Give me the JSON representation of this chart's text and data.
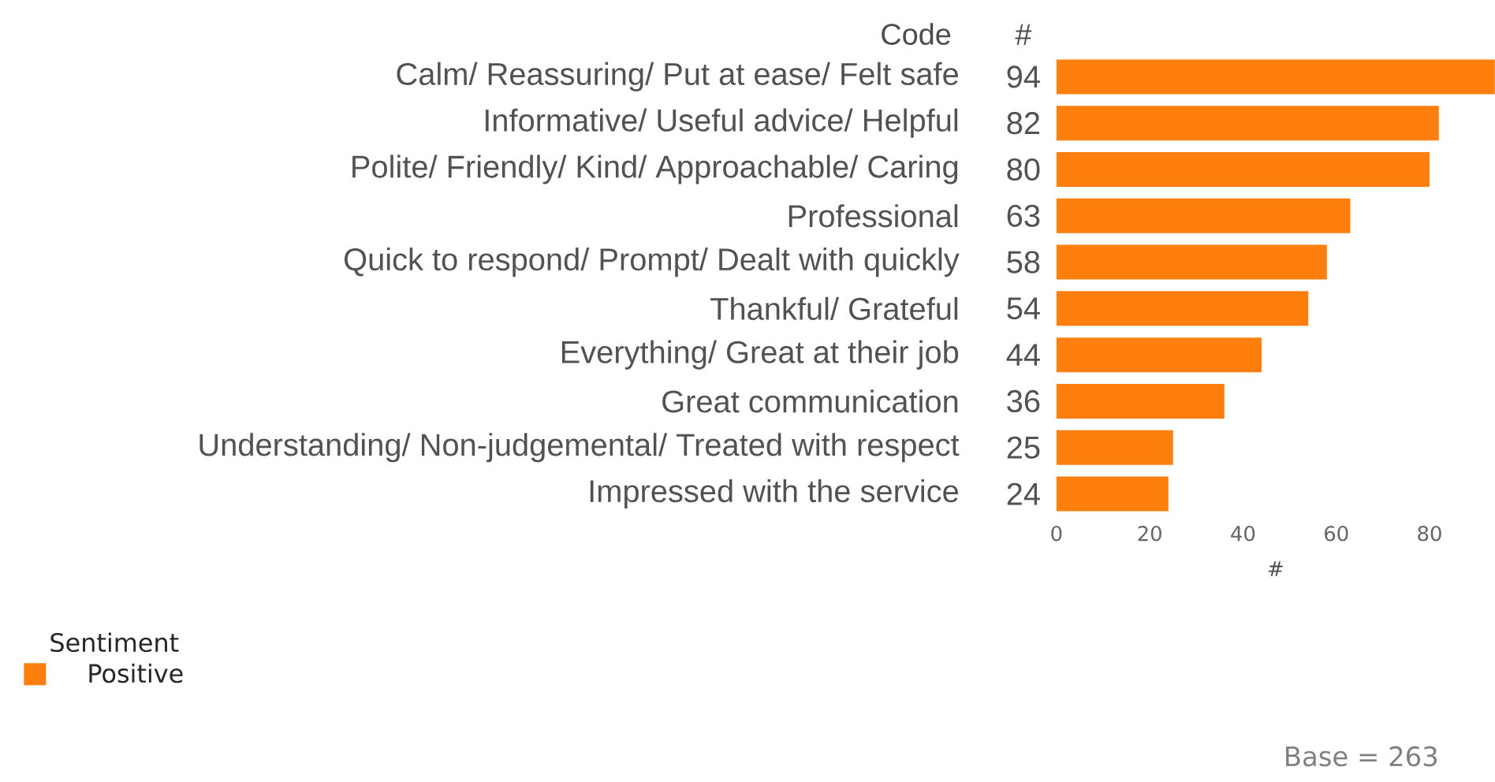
{
  "chart_data": {
    "type": "bar",
    "orientation": "horizontal",
    "ylabel": "Code",
    "xlabel": "#",
    "legend_title": "Sentiment",
    "categories": [
      "Calm/ Reassuring/ Put at ease/ Felt safe",
      "Informative/ Useful advice/ Helpful",
      "Polite/ Friendly/ Kind/ Approachable/ Caring",
      "Professional",
      "Quick to respond/ Prompt/ Dealt with quickly",
      "Thankful/ Grateful",
      "Everything/ Great at their job",
      "Great communication",
      "Understanding/ Non-judgemental/ Treated with respect",
      "Impressed with the service"
    ],
    "series": [
      {
        "name": "Positive",
        "color": "#ff7f0e",
        "values": [
          94,
          82,
          80,
          63,
          58,
          54,
          44,
          36,
          25,
          24
        ]
      }
    ],
    "xlim": [
      0,
      94
    ],
    "xticks": [
      0,
      20,
      40,
      60,
      80
    ],
    "data_labels": true,
    "legend": "bottom left",
    "grid": false,
    "annotations": [
      "#",
      "Base = 263"
    ]
  }
}
